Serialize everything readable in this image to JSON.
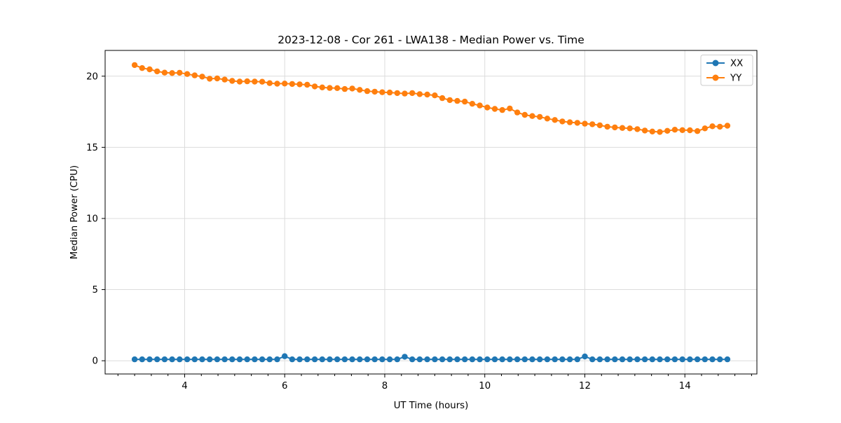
{
  "chart_data": {
    "type": "line",
    "title": "2023-12-08 - Cor 261 - LWA138 - Median Power vs. Time",
    "xlabel": "UT Time (hours)",
    "ylabel": "Median Power (CPU)",
    "xlim": [
      2.41,
      15.44
    ],
    "ylim": [
      -0.93,
      21.81
    ],
    "xticks": [
      4,
      6,
      8,
      10,
      12,
      14
    ],
    "yticks": [
      0,
      5,
      10,
      15,
      20
    ],
    "x_minor_divisions_per_major": 6,
    "grid": true,
    "grid_color": "#dcdcdc",
    "legend_position": "upper right",
    "marker": "o",
    "x": [
      3.0,
      3.15,
      3.3,
      3.45,
      3.6,
      3.75,
      3.9,
      4.05,
      4.2,
      4.35,
      4.5,
      4.65,
      4.8,
      4.95,
      5.1,
      5.25,
      5.4,
      5.55,
      5.7,
      5.85,
      6.0,
      6.15,
      6.3,
      6.45,
      6.6,
      6.75,
      6.9,
      7.05,
      7.2,
      7.35,
      7.5,
      7.65,
      7.8,
      7.95,
      8.1,
      8.25,
      8.4,
      8.55,
      8.7,
      8.85,
      9.0,
      9.15,
      9.3,
      9.45,
      9.6,
      9.75,
      9.9,
      10.05,
      10.2,
      10.35,
      10.5,
      10.65,
      10.8,
      10.95,
      11.1,
      11.25,
      11.4,
      11.55,
      11.7,
      11.85,
      12.0,
      12.15,
      12.3,
      12.45,
      12.6,
      12.75,
      12.9,
      13.05,
      13.2,
      13.35,
      13.5,
      13.65,
      13.8,
      13.95,
      14.1,
      14.25,
      14.4,
      14.55,
      14.7,
      14.85
    ],
    "series": [
      {
        "name": "XX",
        "color": "#1f77b4",
        "values": [
          0.1,
          0.1,
          0.1,
          0.1,
          0.1,
          0.1,
          0.1,
          0.1,
          0.1,
          0.1,
          0.1,
          0.1,
          0.1,
          0.1,
          0.1,
          0.1,
          0.1,
          0.1,
          0.1,
          0.1,
          0.32,
          0.1,
          0.1,
          0.1,
          0.1,
          0.1,
          0.1,
          0.1,
          0.1,
          0.1,
          0.1,
          0.1,
          0.1,
          0.1,
          0.1,
          0.1,
          0.28,
          0.1,
          0.1,
          0.1,
          0.1,
          0.1,
          0.1,
          0.1,
          0.1,
          0.1,
          0.1,
          0.1,
          0.1,
          0.1,
          0.1,
          0.1,
          0.1,
          0.1,
          0.1,
          0.1,
          0.1,
          0.1,
          0.1,
          0.1,
          0.3,
          0.1,
          0.1,
          0.1,
          0.1,
          0.1,
          0.1,
          0.1,
          0.1,
          0.1,
          0.1,
          0.1,
          0.1,
          0.1,
          0.1,
          0.1,
          0.1,
          0.1,
          0.1,
          0.1
        ]
      },
      {
        "name": "YY",
        "color": "#ff7f0e",
        "values": [
          20.78,
          20.57,
          20.48,
          20.34,
          20.25,
          20.22,
          20.24,
          20.15,
          20.06,
          19.97,
          19.82,
          19.84,
          19.76,
          19.67,
          19.62,
          19.64,
          19.62,
          19.61,
          19.51,
          19.47,
          19.48,
          19.45,
          19.43,
          19.4,
          19.28,
          19.21,
          19.17,
          19.16,
          19.1,
          19.13,
          19.04,
          18.95,
          18.91,
          18.87,
          18.85,
          18.81,
          18.78,
          18.81,
          18.74,
          18.71,
          18.65,
          18.46,
          18.32,
          18.26,
          18.21,
          18.06,
          17.94,
          17.8,
          17.7,
          17.62,
          17.73,
          17.45,
          17.28,
          17.2,
          17.14,
          17.02,
          16.92,
          16.82,
          16.76,
          16.72,
          16.66,
          16.62,
          16.55,
          16.45,
          16.4,
          16.36,
          16.33,
          16.28,
          16.18,
          16.11,
          16.08,
          16.16,
          16.24,
          16.21,
          16.2,
          16.14,
          16.33,
          16.48,
          16.45,
          16.52
        ]
      }
    ]
  }
}
